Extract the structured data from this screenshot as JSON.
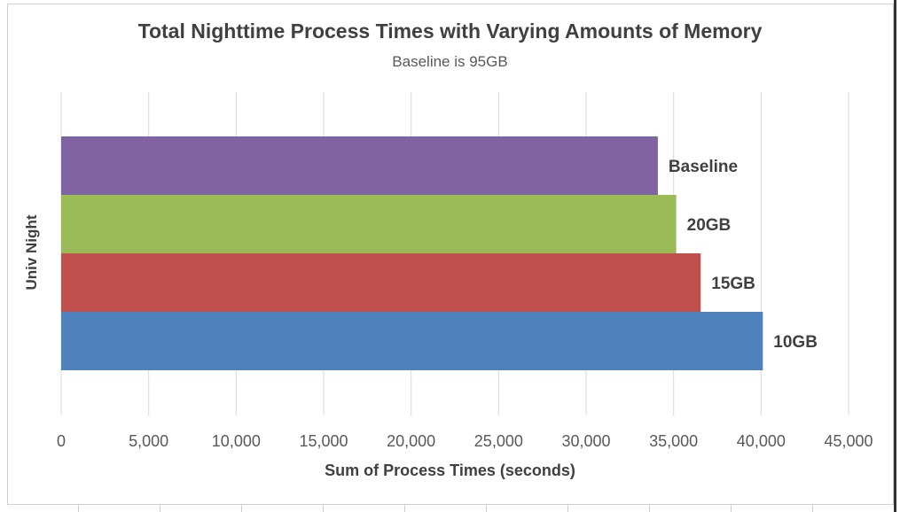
{
  "chart_data": {
    "type": "bar",
    "orientation": "horizontal",
    "title": "Total Nighttime Process Times with Varying Amounts of Memory",
    "subtitle": "Baseline is 95GB",
    "xlabel": "Sum of Process Times (seconds)",
    "ylabel": "Univ Night",
    "xlim": [
      0,
      45000
    ],
    "xticks": [
      "0",
      "5,000",
      "10,000",
      "15,000",
      "20,000",
      "25,000",
      "30,000",
      "35,000",
      "40,000",
      "45,000"
    ],
    "grid": true,
    "series": [
      {
        "name": "Baseline",
        "value": 34100,
        "color": "#8064a2"
      },
      {
        "name": "20GB",
        "value": 35150,
        "color": "#9bbb59"
      },
      {
        "name": "15GB",
        "value": 36550,
        "color": "#c0504d"
      },
      {
        "name": "10GB",
        "value": 40100,
        "color": "#4f81bd"
      }
    ]
  }
}
